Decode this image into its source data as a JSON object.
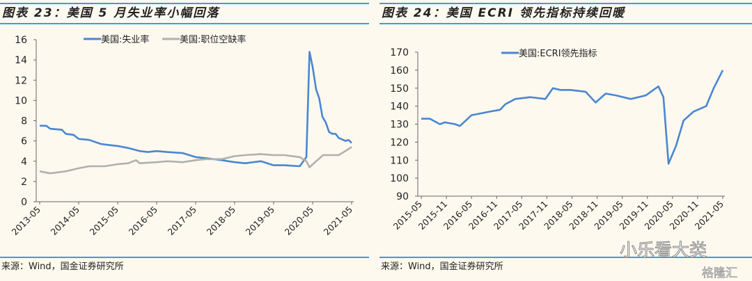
{
  "left": {
    "title": "图表 23：美国 5 月失业率小幅回落",
    "source": "来源：Wind，国金证券研究所"
  },
  "right": {
    "title": "图表 24：美国 ECRI 领先指标持续回暖",
    "source": "来源：Wind，国金证券研究所"
  },
  "watermark": {
    "wechat": "小乐看大类",
    "brand": "格隆汇"
  },
  "chart_data": [
    {
      "type": "line",
      "title": "美国5月失业率小幅回落",
      "ylim": [
        0,
        16
      ],
      "yticks": [
        0,
        2,
        4,
        6,
        8,
        10,
        12,
        14,
        16
      ],
      "xticks": [
        "2013-05",
        "2014-05",
        "2015-05",
        "2016-05",
        "2017-05",
        "2018-05",
        "2019-05",
        "2020-05",
        "2021-05"
      ],
      "xlim": [
        2013.33,
        2021.33
      ],
      "legend": "top",
      "series": [
        {
          "name": "美国:失业率",
          "color": "#4a86d0",
          "points": [
            [
              2013.33,
              7.5
            ],
            [
              2013.5,
              7.5
            ],
            [
              2013.6,
              7.2
            ],
            [
              2013.9,
              7.1
            ],
            [
              2014.0,
              6.7
            ],
            [
              2014.2,
              6.6
            ],
            [
              2014.33,
              6.2
            ],
            [
              2014.6,
              6.1
            ],
            [
              2014.9,
              5.7
            ],
            [
              2015.1,
              5.6
            ],
            [
              2015.33,
              5.5
            ],
            [
              2015.6,
              5.3
            ],
            [
              2015.9,
              5.0
            ],
            [
              2016.1,
              4.9
            ],
            [
              2016.33,
              5.0
            ],
            [
              2016.6,
              4.9
            ],
            [
              2017.0,
              4.8
            ],
            [
              2017.33,
              4.4
            ],
            [
              2017.6,
              4.3
            ],
            [
              2018.0,
              4.1
            ],
            [
              2018.33,
              3.9
            ],
            [
              2018.6,
              3.8
            ],
            [
              2019.0,
              4.0
            ],
            [
              2019.33,
              3.6
            ],
            [
              2019.6,
              3.6
            ],
            [
              2020.0,
              3.5
            ],
            [
              2020.17,
              4.4
            ],
            [
              2020.25,
              14.8
            ],
            [
              2020.33,
              13.3
            ],
            [
              2020.42,
              11.1
            ],
            [
              2020.5,
              10.2
            ],
            [
              2020.58,
              8.4
            ],
            [
              2020.67,
              7.8
            ],
            [
              2020.75,
              6.9
            ],
            [
              2020.83,
              6.7
            ],
            [
              2020.92,
              6.7
            ],
            [
              2021.0,
              6.3
            ],
            [
              2021.17,
              6.0
            ],
            [
              2021.25,
              6.1
            ],
            [
              2021.33,
              5.8
            ]
          ]
        },
        {
          "name": "美国:职位空缺率",
          "color": "#b0b0b0",
          "points": [
            [
              2013.33,
              3.0
            ],
            [
              2013.6,
              2.8
            ],
            [
              2014.0,
              3.0
            ],
            [
              2014.33,
              3.3
            ],
            [
              2014.6,
              3.5
            ],
            [
              2015.0,
              3.5
            ],
            [
              2015.33,
              3.7
            ],
            [
              2015.6,
              3.8
            ],
            [
              2015.8,
              4.1
            ],
            [
              2015.9,
              3.8
            ],
            [
              2016.33,
              3.9
            ],
            [
              2016.6,
              4.0
            ],
            [
              2017.0,
              3.9
            ],
            [
              2017.33,
              4.1
            ],
            [
              2017.6,
              4.2
            ],
            [
              2018.0,
              4.2
            ],
            [
              2018.33,
              4.5
            ],
            [
              2018.6,
              4.6
            ],
            [
              2019.0,
              4.7
            ],
            [
              2019.33,
              4.6
            ],
            [
              2019.6,
              4.6
            ],
            [
              2020.0,
              4.4
            ],
            [
              2020.17,
              4.0
            ],
            [
              2020.25,
              3.4
            ],
            [
              2020.42,
              4.0
            ],
            [
              2020.6,
              4.6
            ],
            [
              2020.9,
              4.6
            ],
            [
              2021.0,
              4.6
            ],
            [
              2021.17,
              5.0
            ],
            [
              2021.33,
              5.4
            ]
          ]
        }
      ]
    },
    {
      "type": "line",
      "title": "美国ECRI领先指标持续回暖",
      "ylim": [
        90,
        170
      ],
      "yticks": [
        90,
        100,
        110,
        120,
        130,
        140,
        150,
        160,
        170
      ],
      "xticks": [
        "2015-05",
        "2015-11",
        "2016-05",
        "2016-11",
        "2017-05",
        "2017-11",
        "2018-05",
        "2018-11",
        "2019-05",
        "2019-11",
        "2020-05",
        "2020-11",
        "2021-05"
      ],
      "xlim": [
        2015.33,
        2021.33
      ],
      "legend": "top",
      "series": [
        {
          "name": "美国:ECRI领先指标",
          "color": "#4a86d0",
          "points": [
            [
              2015.33,
              133
            ],
            [
              2015.5,
              133
            ],
            [
              2015.7,
              130
            ],
            [
              2015.8,
              131
            ],
            [
              2016.0,
              130
            ],
            [
              2016.1,
              129
            ],
            [
              2016.33,
              135
            ],
            [
              2016.7,
              137
            ],
            [
              2016.9,
              138
            ],
            [
              2017.0,
              141
            ],
            [
              2017.2,
              144
            ],
            [
              2017.5,
              145
            ],
            [
              2017.8,
              144
            ],
            [
              2017.95,
              150
            ],
            [
              2018.1,
              149
            ],
            [
              2018.3,
              149
            ],
            [
              2018.6,
              148
            ],
            [
              2018.8,
              142
            ],
            [
              2019.0,
              147
            ],
            [
              2019.2,
              146
            ],
            [
              2019.5,
              144
            ],
            [
              2019.8,
              146
            ],
            [
              2020.05,
              151
            ],
            [
              2020.15,
              145
            ],
            [
              2020.25,
              108
            ],
            [
              2020.4,
              118
            ],
            [
              2020.55,
              132
            ],
            [
              2020.75,
              137
            ],
            [
              2021.0,
              140
            ],
            [
              2021.15,
              150
            ],
            [
              2021.33,
              160
            ]
          ]
        }
      ]
    }
  ]
}
